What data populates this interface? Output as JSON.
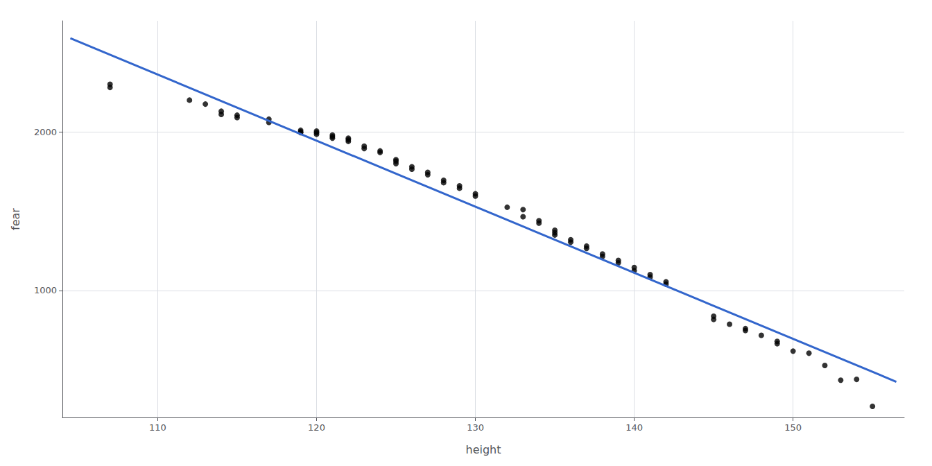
{
  "chart_data": {
    "type": "scatter",
    "xlabel": "height",
    "ylabel": "fear",
    "series": [
      {
        "type": "scatter",
        "color": "#000000",
        "x": [
          107,
          107,
          112,
          113,
          114,
          114,
          115,
          115,
          117,
          117,
          119,
          119,
          119,
          120,
          120,
          120,
          121,
          121,
          121,
          122,
          122,
          122,
          123,
          123,
          124,
          124,
          125,
          125,
          125,
          126,
          126,
          127,
          127,
          128,
          128,
          129,
          129,
          130,
          130,
          132,
          133,
          133,
          134,
          134,
          135,
          135,
          135,
          136,
          136,
          137,
          137,
          138,
          138,
          139,
          139,
          140,
          140,
          141,
          141,
          142,
          142,
          145,
          145,
          146,
          147,
          147,
          148,
          149,
          149,
          150,
          151,
          152,
          153,
          154,
          155
        ],
        "values": [
          2280,
          2300,
          2200,
          2175,
          2130,
          2110,
          2105,
          2090,
          2080,
          2060,
          2010,
          2000,
          1995,
          2005,
          1995,
          1985,
          1980,
          1970,
          1960,
          1960,
          1950,
          1940,
          1910,
          1895,
          1880,
          1870,
          1825,
          1815,
          1800,
          1780,
          1765,
          1745,
          1730,
          1695,
          1680,
          1660,
          1645,
          1610,
          1595,
          1525,
          1510,
          1465,
          1440,
          1425,
          1380,
          1365,
          1350,
          1320,
          1305,
          1280,
          1265,
          1230,
          1215,
          1190,
          1175,
          1145,
          1125,
          1100,
          1085,
          1055,
          1040,
          838,
          818,
          788,
          760,
          748,
          718,
          680,
          665,
          618,
          605,
          528,
          435,
          440,
          270
        ]
      },
      {
        "type": "line",
        "color": "#3366CC",
        "x": [
          104.5,
          156.5
        ],
        "values": [
          2590,
          425
        ]
      }
    ],
    "xlim": [
      104,
      157
    ],
    "ylim": [
      200,
      2700
    ],
    "xticks": [
      110,
      120,
      130,
      140,
      150
    ],
    "yticks": [
      1000,
      2000
    ],
    "grid": true
  }
}
